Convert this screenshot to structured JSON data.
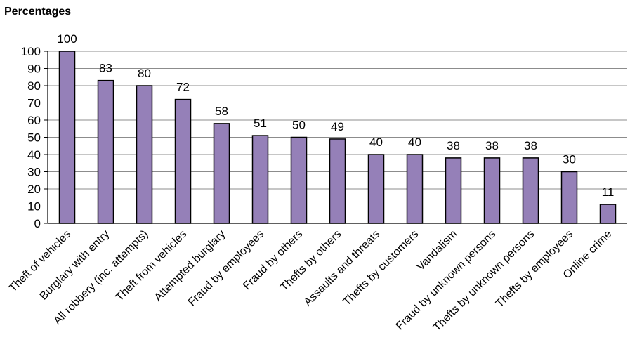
{
  "chart_data": {
    "type": "bar",
    "ylabel": "Percentages",
    "ylim": [
      0,
      100
    ],
    "yticks": [
      0,
      10,
      20,
      30,
      40,
      50,
      60,
      70,
      80,
      90,
      100
    ],
    "grid": true,
    "categories": [
      "Theft of vehicles",
      "Burglary with entry",
      "All robbery (inc. attempts)",
      "Theft from vehicles",
      "Attempted burglary",
      "Fraud by employees",
      "Fraud by others",
      "Thefts by others",
      "Assaults and threats",
      "Thefts by customers",
      "Vandalism",
      "Fraud by unknown persons",
      "Thefts by unknown persons",
      "Thefts by employees",
      "Online crime"
    ],
    "values": [
      100,
      83,
      80,
      72,
      58,
      51,
      50,
      49,
      40,
      40,
      38,
      38,
      38,
      30,
      11
    ],
    "bar_color": "#9580B8"
  }
}
